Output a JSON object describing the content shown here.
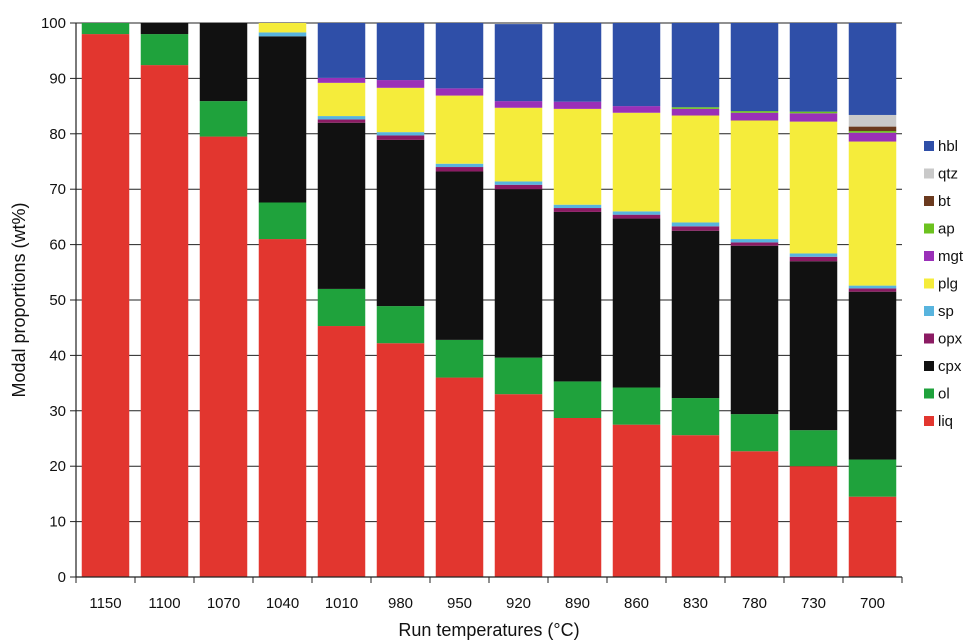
{
  "chart_data": {
    "type": "bar",
    "stacked": true,
    "xlabel": "Run temperatures (°C)",
    "ylabel": "Modal proportions (wt%)",
    "ylim": [
      0,
      100
    ],
    "yticks": [
      0,
      10,
      20,
      30,
      40,
      50,
      60,
      70,
      80,
      90,
      100
    ],
    "grid": "horizontal",
    "legend_position": "right",
    "categories": [
      "1150",
      "1100",
      "1070",
      "1040",
      "1010",
      "980",
      "950",
      "920",
      "890",
      "860",
      "830",
      "780",
      "730",
      "700"
    ],
    "series": [
      {
        "name": "liq",
        "color": "#e2362f",
        "values": [
          98,
          92.4,
          79.5,
          61,
          45.3,
          42.2,
          36,
          33,
          28.7,
          27.5,
          25.6,
          22.7,
          20,
          14.5
        ]
      },
      {
        "name": "ol",
        "color": "#1fa23c",
        "values": [
          2,
          5.6,
          6.4,
          6.6,
          6.7,
          6.7,
          6.8,
          6.6,
          6.6,
          6.7,
          6.7,
          6.7,
          6.5,
          6.7
        ]
      },
      {
        "name": "cpx",
        "color": "#111111",
        "values": [
          0,
          2,
          14.1,
          30,
          30,
          30,
          30.4,
          30.4,
          30.6,
          30.5,
          30.2,
          30.4,
          30.5,
          30.3
        ]
      },
      {
        "name": "opx",
        "color": "#8b1b63",
        "values": [
          0,
          0,
          0,
          0,
          0.6,
          0.8,
          0.8,
          0.8,
          0.7,
          0.7,
          0.8,
          0.6,
          0.8,
          0.6
        ]
      },
      {
        "name": "sp",
        "color": "#58b4de",
        "values": [
          0,
          0,
          0,
          0.7,
          0.6,
          0.6,
          0.6,
          0.6,
          0.6,
          0.6,
          0.7,
          0.6,
          0.6,
          0.5
        ]
      },
      {
        "name": "plg",
        "color": "#f5ec3b",
        "values": [
          0,
          0,
          0,
          1.7,
          6,
          8,
          12.3,
          13.3,
          17.3,
          17.8,
          19.3,
          21.4,
          23.8,
          26
        ]
      },
      {
        "name": "mgt",
        "color": "#9a30b8",
        "values": [
          0,
          0,
          0,
          0,
          0.9,
          1.4,
          1.3,
          1.2,
          1.3,
          1.2,
          1.2,
          1.4,
          1.5,
          1.6
        ]
      },
      {
        "name": "ap",
        "color": "#6cc21f",
        "values": [
          0,
          0,
          0,
          0,
          0,
          0,
          0,
          0,
          0,
          0,
          0.3,
          0.3,
          0.3,
          0.3
        ]
      },
      {
        "name": "bt",
        "color": "#6b3a1e",
        "values": [
          0,
          0,
          0,
          0,
          0,
          0,
          0,
          0,
          0,
          0,
          0,
          0,
          0,
          0.8
        ]
      },
      {
        "name": "qtz",
        "color": "#c9c9c9",
        "values": [
          0,
          0,
          0,
          0,
          0,
          0,
          0,
          0,
          0,
          0,
          0,
          0,
          0,
          2.1
        ]
      },
      {
        "name": "hbl",
        "color": "#2f4fa8",
        "values": [
          0,
          0,
          0,
          0,
          9.9,
          10.3,
          11.8,
          13.9,
          14.2,
          15,
          15.2,
          15.9,
          16,
          16.6
        ]
      }
    ],
    "legend_order": [
      "hbl",
      "qtz",
      "bt",
      "ap",
      "mgt",
      "plg",
      "sp",
      "opx",
      "cpx",
      "ol",
      "liq"
    ]
  }
}
